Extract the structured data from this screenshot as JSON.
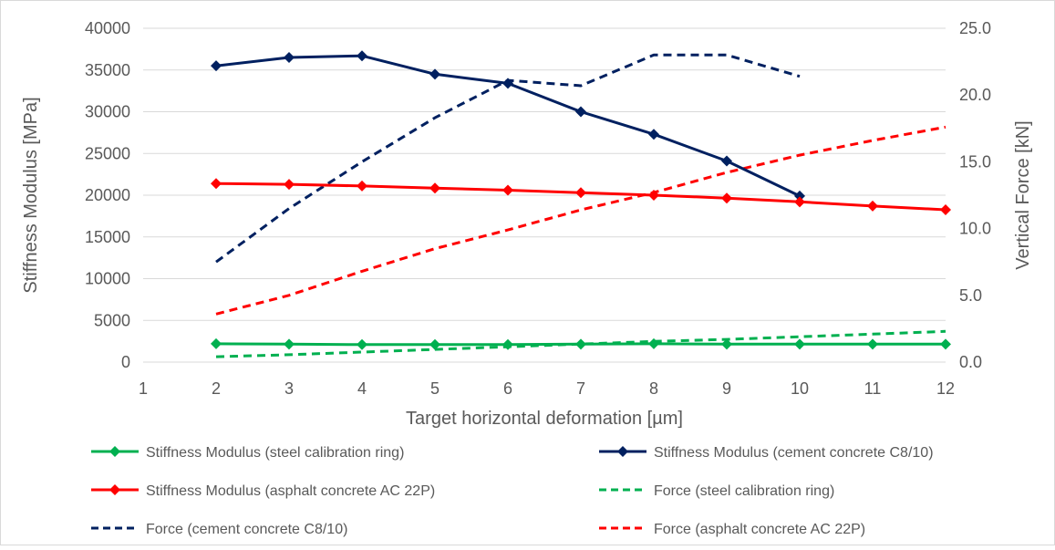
{
  "chart_data": {
    "type": "line",
    "x": [
      1,
      2,
      3,
      4,
      5,
      6,
      7,
      8,
      9,
      10,
      11,
      12
    ],
    "xlabel": "Target horizontal deformation [µm]",
    "ylabel": "Stiffness Modulus [MPa]",
    "y2label": "Vertical Force [kN]",
    "xlim": [
      1,
      12
    ],
    "ylim": [
      0,
      40000
    ],
    "y2lim": [
      0,
      25
    ],
    "x_ticks": [
      "1",
      "2",
      "3",
      "4",
      "5",
      "6",
      "7",
      "8",
      "9",
      "10",
      "11",
      "12"
    ],
    "y_ticks": [
      "0",
      "5000",
      "10000",
      "15000",
      "20000",
      "25000",
      "30000",
      "35000",
      "40000"
    ],
    "y2_ticks": [
      "0.0",
      "5.0",
      "10.0",
      "15.0",
      "20.0",
      "25.0"
    ],
    "grid": "horizontal",
    "legend_position": "bottom",
    "series": [
      {
        "name": "Stiffness Modulus (steel calibration ring)",
        "axis": "left",
        "color": "#00B050",
        "dashed": false,
        "markers": true,
        "x": [
          2,
          3,
          4,
          5,
          6,
          7,
          8,
          9,
          10,
          11,
          12
        ],
        "values": [
          2200,
          2150,
          2100,
          2100,
          2100,
          2150,
          2200,
          2150,
          2150,
          2150,
          2150
        ]
      },
      {
        "name": "Stiffness Modulus (cement concrete C8/10)",
        "axis": "left",
        "color": "#002060",
        "dashed": false,
        "markers": true,
        "x": [
          2,
          3,
          4,
          5,
          6,
          7,
          8,
          9,
          10
        ],
        "values": [
          35500,
          36500,
          36700,
          34500,
          33400,
          30000,
          27300,
          24100,
          19900
        ]
      },
      {
        "name": "Stiffness Modulus (asphalt concrete AC 22P)",
        "axis": "left",
        "color": "#FF0000",
        "dashed": false,
        "markers": true,
        "x": [
          2,
          3,
          4,
          5,
          6,
          7,
          8,
          9,
          10,
          11,
          12
        ],
        "values": [
          21400,
          21300,
          21100,
          20850,
          20600,
          20300,
          20000,
          19650,
          19200,
          18700,
          18250
        ]
      },
      {
        "name": "Force (steel calibration ring)",
        "axis": "right",
        "color": "#00B050",
        "dashed": true,
        "markers": false,
        "x": [
          2,
          3,
          4,
          5,
          6,
          7,
          8,
          9,
          10,
          11,
          12
        ],
        "values": [
          0.4,
          0.55,
          0.75,
          0.95,
          1.15,
          1.35,
          1.55,
          1.7,
          1.9,
          2.1,
          2.3
        ]
      },
      {
        "name": "Force (cement concrete C8/10)",
        "axis": "right",
        "color": "#002060",
        "dashed": true,
        "markers": false,
        "x": [
          2,
          3,
          4,
          5,
          6,
          7,
          8,
          9,
          10
        ],
        "values": [
          7.5,
          11.5,
          15.0,
          18.3,
          21.1,
          20.7,
          23.0,
          23.0,
          21.4
        ]
      },
      {
        "name": "Force (asphalt concrete AC 22P)",
        "axis": "right",
        "color": "#FF0000",
        "dashed": true,
        "markers": false,
        "x": [
          2,
          3,
          4,
          5,
          6,
          7,
          8,
          9,
          10,
          11,
          12
        ],
        "values": [
          3.6,
          5.0,
          6.8,
          8.5,
          9.9,
          11.4,
          12.7,
          14.2,
          15.5,
          16.6,
          17.6
        ]
      }
    ]
  }
}
